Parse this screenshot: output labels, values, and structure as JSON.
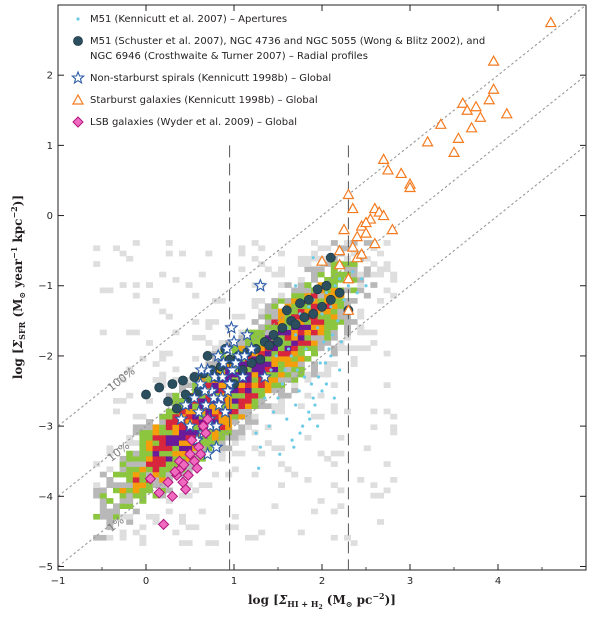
{
  "chart_data": {
    "type": "scatter",
    "xlabel": "log [Σ_HI+H2 (M_⊙ pc^−2)]",
    "ylabel": "log [Σ_SFR (M_⊙ year^−1 kpc^−2)]",
    "xlabel_parts": {
      "prefix": "log [",
      "sym": "Σ",
      "sub": "HI + H",
      "sub2": "2",
      "mid": " (M",
      "sun": "⊙",
      "unit": " pc",
      "exp": "−2",
      "suffix": ")]"
    },
    "ylabel_parts": {
      "prefix": "log [",
      "sym": "Σ",
      "sub": "SFR",
      "mid": " (M",
      "sun": "⊙",
      "unit": " year",
      "exp1": "−1",
      "unit2": " kpc",
      "exp2": "−2",
      "suffix": ")]"
    },
    "xlim": [
      -1,
      5
    ],
    "ylim": [
      -5.05,
      3.0
    ],
    "xticks": [
      -1,
      0,
      1,
      2,
      3,
      4
    ],
    "yticks": [
      -5,
      -4,
      -3,
      -2,
      -1,
      0,
      1,
      2
    ],
    "xtick_labels": [
      "−1",
      "0",
      "1",
      "2",
      "3",
      "4"
    ],
    "ytick_labels": [
      "−5",
      "−4",
      "−3",
      "−2",
      "−1",
      "0",
      "1",
      "2"
    ],
    "vertical_lines": [
      0.95,
      2.3
    ],
    "efficiency_lines": [
      {
        "label": "100%",
        "intercept": -2.0
      },
      {
        "label": "10%",
        "intercept": -3.0
      },
      {
        "label": "1%",
        "intercept": -4.0
      }
    ],
    "legend_position": "top-left",
    "colors": {
      "m51_apertures": "#6ccbe6",
      "radial": "#2b4f5e",
      "nonstarburst": "#2a5aa8",
      "starburst": "#f47b20",
      "lsb_fill": "#f06ac0",
      "lsb_edge": "#b0157e",
      "dashed_eff": "#999999",
      "vline": "#555555"
    },
    "legend": [
      {
        "key": "m51_apertures",
        "marker": "small-dot",
        "lines": [
          "M51 (Kennicutt et al. 2007) – Apertures"
        ]
      },
      {
        "key": "radial",
        "marker": "dot",
        "lines": [
          "M51 (Schuster et al. 2007), NGC 4736 and NGC 5055 (Wong & Blitz 2002), and",
          "NGC 6946 (Crosthwaite & Turner 2007) – Radial profiles"
        ]
      },
      {
        "key": "nonstarburst",
        "marker": "star",
        "lines": [
          "Non-starburst spirals (Kennicutt 1998b) – Global"
        ]
      },
      {
        "key": "starburst",
        "marker": "triangle",
        "lines": [
          "Starburst galaxies (Kennicutt 1998b) – Global"
        ]
      },
      {
        "key": "lsb",
        "marker": "diamond",
        "lines": [
          "LSB galaxies (Wyder et al. 2009) – Global"
        ]
      }
    ],
    "series": [
      {
        "name": "M51 (Kennicutt et al. 2007) – Apertures",
        "x": [
          1.6,
          1.7,
          1.75,
          1.8,
          1.85,
          1.9,
          1.95,
          2.0,
          2.05,
          2.1,
          2.15,
          2.2,
          2.25,
          2.3,
          2.35,
          1.65,
          1.72,
          1.82,
          1.88,
          1.98,
          2.02,
          2.12,
          2.18,
          2.28,
          2.4,
          1.55,
          1.5,
          1.45,
          1.6,
          1.7,
          1.9,
          2.0,
          1.8,
          2.1,
          1.95,
          2.2,
          1.75,
          1.85,
          2.05,
          1.68,
          1.78,
          1.92,
          2.08,
          2.22,
          1.58,
          1.62,
          2.45,
          2.5,
          1.4,
          1.35,
          1.52,
          1.66,
          1.74,
          1.86,
          1.96,
          2.04,
          2.14,
          1.3,
          1.28,
          1.25,
          1.42,
          1.48,
          1.54,
          2.0,
          1.9,
          1.7
        ],
        "y": [
          -1.6,
          -1.7,
          -1.4,
          -1.5,
          -1.3,
          -1.2,
          -1.6,
          -1.4,
          -1.1,
          -1.3,
          -1.0,
          -0.9,
          -1.2,
          -1.0,
          -0.8,
          -2.0,
          -2.2,
          -1.9,
          -2.4,
          -2.1,
          -1.8,
          -1.7,
          -1.5,
          -1.4,
          -1.1,
          -2.4,
          -2.6,
          -2.8,
          -2.9,
          -2.7,
          -2.6,
          -2.5,
          -2.3,
          -2.0,
          -3.0,
          -2.2,
          -3.1,
          -2.8,
          -2.4,
          -3.3,
          -3.0,
          -2.7,
          -1.9,
          -1.8,
          -2.2,
          -1.9,
          -0.9,
          -1.0,
          -3.0,
          -2.6,
          -3.4,
          -3.2,
          -2.5,
          -2.9,
          -2.3,
          -2.1,
          -2.6,
          -3.3,
          -3.6,
          -3.1,
          -2.2,
          -2.0,
          -1.8,
          -0.7,
          -0.6,
          -1.0
        ]
      },
      {
        "name": "M51 (Schuster et al. 2007), NGC 4736 and NGC 5055 (Wong & Blitz 2002), and NGC 6946 (Crosthwaite & Turner 2007) – Radial profiles",
        "x": [
          0.0,
          0.15,
          0.3,
          0.42,
          0.55,
          0.65,
          0.75,
          0.85,
          0.95,
          1.05,
          1.15,
          1.25,
          1.35,
          1.45,
          1.55,
          1.65,
          1.7,
          1.8,
          1.9,
          2.0,
          2.1,
          2.2,
          0.5,
          0.6,
          0.8,
          1.0,
          1.1,
          1.2,
          1.3,
          1.4,
          1.5,
          1.6,
          0.7,
          0.9,
          1.75,
          1.85,
          1.95,
          2.05,
          2.3,
          2.1,
          0.35,
          0.25,
          0.45
        ],
        "y": [
          -2.55,
          -2.45,
          -2.4,
          -2.35,
          -2.3,
          -2.25,
          -2.2,
          -2.15,
          -2.05,
          -2.0,
          -1.95,
          -1.9,
          -1.8,
          -1.7,
          -1.6,
          -1.5,
          -1.55,
          -1.45,
          -1.4,
          -1.3,
          -1.2,
          -1.1,
          -2.6,
          -2.5,
          -2.3,
          -2.4,
          -2.2,
          -2.1,
          -2.05,
          -1.85,
          -1.8,
          -1.35,
          -2.0,
          -1.9,
          -1.25,
          -1.2,
          -1.05,
          -1.0,
          -1.35,
          -0.6,
          -2.75,
          -2.65,
          -2.55
        ]
      },
      {
        "name": "Non-starburst spirals (Kennicutt 1998b) – Global",
        "x": [
          0.5,
          0.55,
          0.6,
          0.62,
          0.65,
          0.68,
          0.7,
          0.72,
          0.75,
          0.78,
          0.8,
          0.82,
          0.85,
          0.88,
          0.9,
          0.92,
          0.95,
          0.98,
          1.0,
          1.05,
          1.1,
          1.15,
          1.2,
          1.3,
          0.58,
          0.67,
          0.73,
          0.83,
          0.87,
          0.97,
          1.02,
          1.12,
          0.45,
          0.4,
          0.63,
          0.77,
          0.93,
          1.35,
          0.7,
          0.8
        ],
        "y": [
          -3.0,
          -2.6,
          -2.8,
          -2.4,
          -3.1,
          -2.7,
          -2.2,
          -2.9,
          -2.5,
          -2.3,
          -3.3,
          -2.0,
          -2.6,
          -2.1,
          -2.8,
          -1.9,
          -2.4,
          -2.2,
          -1.8,
          -2.0,
          -2.3,
          -1.7,
          -1.9,
          -1.0,
          -3.2,
          -2.5,
          -3.0,
          -2.7,
          -2.3,
          -1.6,
          -2.1,
          -2.0,
          -2.7,
          -2.9,
          -2.2,
          -2.6,
          -2.5,
          -2.3,
          -3.4,
          -3.0
        ]
      },
      {
        "name": "Starburst galaxies (Kennicutt 1998b) – Global",
        "x": [
          2.3,
          2.3,
          2.35,
          2.2,
          2.25,
          2.3,
          2.4,
          2.45,
          2.5,
          2.55,
          2.6,
          2.65,
          2.7,
          2.75,
          2.5,
          2.7,
          2.9,
          3.0,
          3.2,
          3.35,
          3.5,
          3.6,
          3.65,
          3.7,
          3.8,
          3.9,
          3.95,
          4.1,
          3.95,
          4.6,
          2.0,
          2.2,
          2.4,
          2.6,
          2.8,
          3.0,
          3.55,
          3.75,
          2.35,
          2.45
        ],
        "y": [
          -1.35,
          0.3,
          0.1,
          -0.5,
          -0.2,
          -0.9,
          -0.3,
          -0.15,
          -0.25,
          -0.05,
          0.1,
          0.05,
          0.8,
          0.65,
          -0.1,
          0.0,
          0.6,
          0.45,
          1.05,
          1.3,
          0.9,
          1.6,
          1.5,
          1.25,
          1.4,
          1.65,
          1.8,
          1.45,
          2.2,
          2.75,
          -0.65,
          -0.7,
          -0.6,
          -0.4,
          -0.2,
          0.4,
          1.1,
          1.55,
          -0.45,
          -0.55
        ]
      },
      {
        "name": "LSB galaxies (Wyder et al. 2009) – Global",
        "x": [
          0.2,
          0.3,
          0.35,
          0.4,
          0.45,
          0.5,
          0.55,
          0.6,
          0.65,
          0.7,
          0.25,
          0.38,
          0.42,
          0.52,
          0.58,
          0.62,
          0.68,
          0.15,
          0.05,
          0.48,
          0.33,
          0.43
        ],
        "y": [
          -4.4,
          -4.0,
          -3.7,
          -3.6,
          -3.9,
          -3.4,
          -3.5,
          -3.3,
          -3.0,
          -2.9,
          -3.8,
          -3.5,
          -3.8,
          -3.2,
          -3.6,
          -3.4,
          -3.1,
          -3.95,
          -3.75,
          -3.7,
          -3.65,
          -3.55
        ]
      }
    ]
  }
}
